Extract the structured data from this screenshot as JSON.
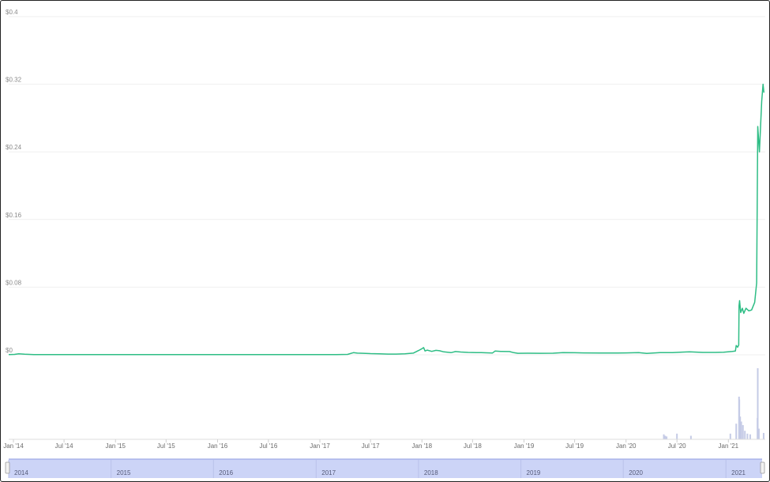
{
  "chart_data": {
    "type": "line",
    "title": "",
    "xlabel": "",
    "ylabel": "",
    "colors": {
      "price_line": "#2ebd85",
      "volume_bar": "#c5cbe6",
      "navigator_fill": "#ccd4f7",
      "navigator_line": "#8f9be0",
      "grid": "#efefef"
    },
    "ylim": [
      0,
      0.4
    ],
    "y_tick_labels": [
      "$0",
      "$0.08",
      "$0.16",
      "$0.24",
      "$0.32",
      "$0.4"
    ],
    "y_tick_values": [
      0,
      0.08,
      0.16,
      0.24,
      0.32,
      0.4
    ],
    "x_range": [
      "2014-01-01",
      "2021-05-10"
    ],
    "x_tick_labels": [
      "Jan '14",
      "Jul '14",
      "Jan '15",
      "Jul '15",
      "Jan '16",
      "Jul '16",
      "Jan '17",
      "Jul '17",
      "Jan '18",
      "Jul '18",
      "Jan '19",
      "Jul '19",
      "Jan '20",
      "Jul '20",
      "Jan '21"
    ],
    "x_tick_dates": [
      "2014-01-01",
      "2014-07-01",
      "2015-01-01",
      "2015-07-01",
      "2016-01-01",
      "2016-07-01",
      "2017-01-01",
      "2017-07-01",
      "2018-01-01",
      "2018-07-01",
      "2019-01-01",
      "2019-07-01",
      "2020-01-01",
      "2020-07-01",
      "2021-01-01"
    ],
    "navigator_labels": [
      "2014",
      "2015",
      "2016",
      "2017",
      "2018",
      "2019",
      "2020",
      "2021"
    ],
    "navigator_dates": [
      "2014-01-01",
      "2015-01-01",
      "2016-01-01",
      "2017-01-01",
      "2018-01-01",
      "2019-01-01",
      "2020-01-01",
      "2021-01-01"
    ],
    "series": [
      {
        "type": "line",
        "values": [
          [
            "2013-12-15",
            0.0002
          ],
          [
            "2014-01-05",
            0.0005
          ],
          [
            "2014-01-20",
            0.0012
          ],
          [
            "2014-02-10",
            0.0007
          ],
          [
            "2014-03-15",
            0.0003
          ],
          [
            "2014-06-01",
            0.0002
          ],
          [
            "2014-12-01",
            0.0002
          ],
          [
            "2015-06-01",
            0.0002
          ],
          [
            "2016-01-01",
            0.0002
          ],
          [
            "2016-07-01",
            0.0003
          ],
          [
            "2017-01-01",
            0.0002
          ],
          [
            "2017-03-01",
            0.0003
          ],
          [
            "2017-04-10",
            0.0005
          ],
          [
            "2017-05-01",
            0.0025
          ],
          [
            "2017-05-15",
            0.002
          ],
          [
            "2017-06-05",
            0.0018
          ],
          [
            "2017-07-01",
            0.0014
          ],
          [
            "2017-08-01",
            0.0012
          ],
          [
            "2017-09-01",
            0.0008
          ],
          [
            "2017-10-01",
            0.0008
          ],
          [
            "2017-11-01",
            0.0012
          ],
          [
            "2017-12-01",
            0.002
          ],
          [
            "2017-12-20",
            0.005
          ],
          [
            "2018-01-01",
            0.0072
          ],
          [
            "2018-01-07",
            0.0085
          ],
          [
            "2018-01-12",
            0.0045
          ],
          [
            "2018-01-20",
            0.0055
          ],
          [
            "2018-02-05",
            0.004
          ],
          [
            "2018-02-20",
            0.0052
          ],
          [
            "2018-03-05",
            0.0048
          ],
          [
            "2018-03-20",
            0.0035
          ],
          [
            "2018-04-15",
            0.0025
          ],
          [
            "2018-05-01",
            0.0038
          ],
          [
            "2018-05-20",
            0.0033
          ],
          [
            "2018-06-15",
            0.0028
          ],
          [
            "2018-07-15",
            0.0025
          ],
          [
            "2018-08-01",
            0.0025
          ],
          [
            "2018-08-20",
            0.0023
          ],
          [
            "2018-09-10",
            0.0021
          ],
          [
            "2018-09-20",
            0.0045
          ],
          [
            "2018-10-10",
            0.004
          ],
          [
            "2018-11-10",
            0.0038
          ],
          [
            "2018-11-25",
            0.0025
          ],
          [
            "2018-12-10",
            0.0018
          ],
          [
            "2019-01-15",
            0.0019
          ],
          [
            "2019-03-01",
            0.0018
          ],
          [
            "2019-04-15",
            0.0019
          ],
          [
            "2019-05-20",
            0.0025
          ],
          [
            "2019-07-01",
            0.0024
          ],
          [
            "2019-08-01",
            0.0022
          ],
          [
            "2019-10-01",
            0.0021
          ],
          [
            "2019-12-01",
            0.0021
          ],
          [
            "2020-01-01",
            0.0022
          ],
          [
            "2020-02-15",
            0.0026
          ],
          [
            "2020-03-15",
            0.0016
          ],
          [
            "2020-05-01",
            0.0025
          ],
          [
            "2020-06-15",
            0.0026
          ],
          [
            "2020-07-20",
            0.0032
          ],
          [
            "2020-08-15",
            0.0035
          ],
          [
            "2020-10-01",
            0.0028
          ],
          [
            "2020-11-15",
            0.0028
          ],
          [
            "2020-12-15",
            0.003
          ],
          [
            "2021-01-15",
            0.004
          ],
          [
            "2021-01-26",
            0.0045
          ],
          [
            "2021-01-29",
            0.011
          ],
          [
            "2021-02-03",
            0.009
          ],
          [
            "2021-02-07",
            0.0115
          ],
          [
            "2021-02-08",
            0.058
          ],
          [
            "2021-02-10",
            0.064
          ],
          [
            "2021-02-14",
            0.05
          ],
          [
            "2021-02-20",
            0.055
          ],
          [
            "2021-02-25",
            0.049
          ],
          [
            "2021-03-05",
            0.055
          ],
          [
            "2021-03-15",
            0.052
          ],
          [
            "2021-03-25",
            0.053
          ],
          [
            "2021-04-05",
            0.062
          ],
          [
            "2021-04-12",
            0.085
          ],
          [
            "2021-04-16",
            0.27
          ],
          [
            "2021-04-22",
            0.24
          ],
          [
            "2021-04-30",
            0.3
          ],
          [
            "2021-05-05",
            0.32
          ],
          [
            "2021-05-08",
            0.31
          ]
        ]
      }
    ],
    "volume": [
      [
        "2020-05-15",
        0.07
      ],
      [
        "2020-05-20",
        0.05
      ],
      [
        "2020-05-25",
        0.04
      ],
      [
        "2020-07-01",
        0.08
      ],
      [
        "2020-08-20",
        0.05
      ],
      [
        "2021-01-08",
        0.08
      ],
      [
        "2021-01-29",
        0.22
      ],
      [
        "2021-02-08",
        0.6
      ],
      [
        "2021-02-09",
        0.56
      ],
      [
        "2021-02-12",
        0.32
      ],
      [
        "2021-02-16",
        0.25
      ],
      [
        "2021-02-22",
        0.2
      ],
      [
        "2021-03-01",
        0.12
      ],
      [
        "2021-03-10",
        0.08
      ],
      [
        "2021-03-20",
        0.07
      ],
      [
        "2021-04-15",
        0.3
      ],
      [
        "2021-04-16",
        1.0
      ],
      [
        "2021-04-20",
        0.15
      ],
      [
        "2021-05-07",
        0.09
      ]
    ]
  }
}
